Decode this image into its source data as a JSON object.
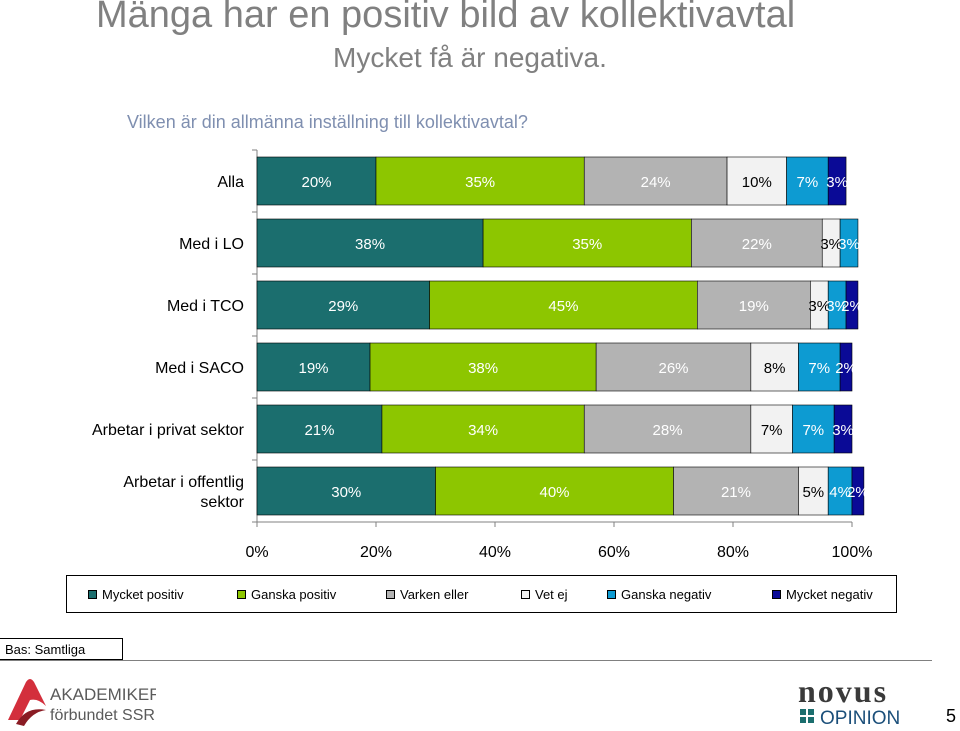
{
  "title": "Mänga har en positiv bild av kollektivavtal",
  "subtitle": "Mycket få är negativa.",
  "question": "Vilken är din allmänna inställning till kollektivavtal?",
  "base_label": "Bas: Samtliga",
  "page_number": "5",
  "logos": {
    "left": {
      "line1": "AKADEMIKER",
      "line2": "förbundet SSR"
    },
    "right": {
      "line1": "novus",
      "line2": "OPINION"
    }
  },
  "chart_data": {
    "type": "bar",
    "orientation": "horizontal",
    "stacked": true,
    "categories": [
      "Alla",
      "Med i LO",
      "Med i TCO",
      "Med i SACO",
      "Arbetar i privat sektor",
      "Arbetar i offentlig sektor"
    ],
    "series": [
      {
        "name": "Mycket positiv",
        "color": "#1b6e6e",
        "values": [
          20,
          38,
          29,
          19,
          21,
          30
        ]
      },
      {
        "name": "Ganska positiv",
        "color": "#8dc600",
        "values": [
          35,
          35,
          45,
          38,
          34,
          40
        ]
      },
      {
        "name": "Varken eller",
        "color": "#b3b3b3",
        "values": [
          24,
          22,
          19,
          26,
          28,
          21
        ]
      },
      {
        "name": "Vet ej",
        "color": "#f2f2f2",
        "values": [
          10,
          3,
          3,
          8,
          7,
          5
        ]
      },
      {
        "name": "Ganska negativ",
        "color": "#0d9bd2",
        "values": [
          7,
          3,
          3,
          7,
          7,
          4
        ]
      },
      {
        "name": "Mycket negativ",
        "color": "#0a0a96",
        "values": [
          3,
          0,
          2,
          2,
          3,
          2
        ]
      }
    ],
    "label_colors": [
      "#ffffff",
      "#ffffff",
      "#ffffff",
      "#000000",
      "#ffffff",
      "#ffffff"
    ],
    "xticks": [
      "0%",
      "20%",
      "40%",
      "60%",
      "80%",
      "100%"
    ],
    "xlim": [
      0,
      100
    ],
    "legend_position": "bottom"
  }
}
